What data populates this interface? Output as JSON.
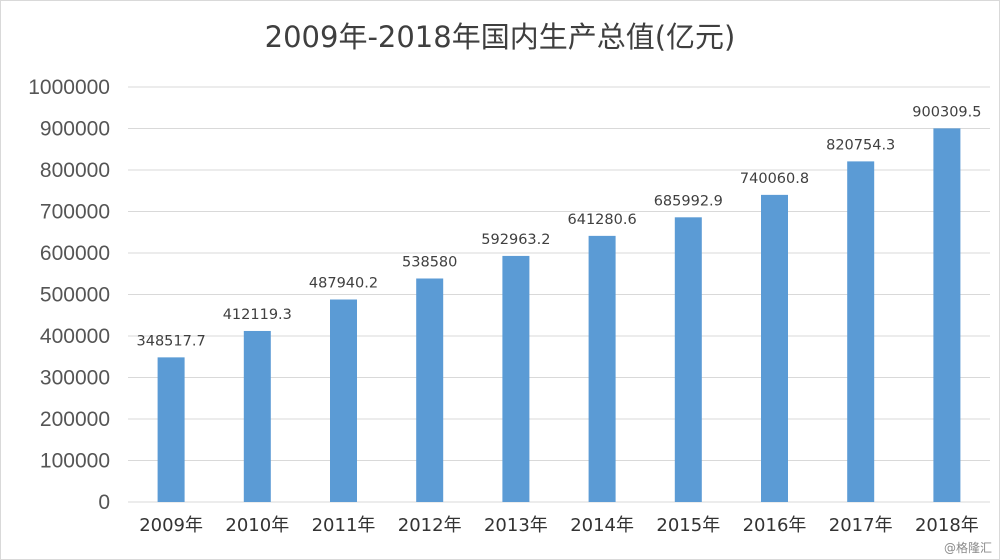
{
  "chart_data": {
    "type": "bar",
    "title": "2009年-2018年国内生产总值(亿元)",
    "xlabel": "",
    "ylabel": "",
    "categories": [
      "2009年",
      "2010年",
      "2011年",
      "2012年",
      "2013年",
      "2014年",
      "2015年",
      "2016年",
      "2017年",
      "2018年"
    ],
    "values": [
      348517.7,
      412119.3,
      487940.2,
      538580,
      592963.2,
      641280.6,
      685992.9,
      740060.8,
      820754.3,
      900309.5
    ],
    "data_labels": [
      "348517.7",
      "412119.3",
      "487940.2",
      "538580",
      "592963.2",
      "641280.6",
      "685992.9",
      "740060.8",
      "820754.3",
      "900309.5"
    ],
    "y_ticks": [
      0,
      100000,
      200000,
      300000,
      400000,
      500000,
      600000,
      700000,
      800000,
      900000,
      1000000
    ],
    "ylim": [
      0,
      1000000
    ],
    "grid": true,
    "legend": "none",
    "bar_color": "#5b9bd5",
    "grid_color": "#d9d9d9"
  },
  "watermark": "@格隆汇"
}
